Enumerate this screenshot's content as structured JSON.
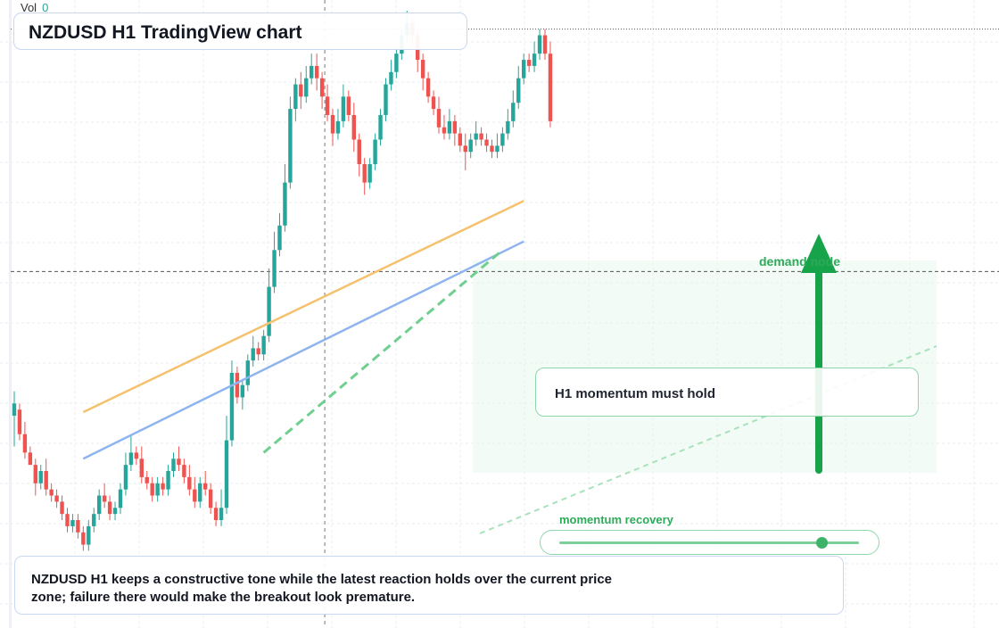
{
  "header": {
    "vol_label": "Vol",
    "vol_value": "0"
  },
  "title": "NZDUSD H1 TradingView chart",
  "annotations": {
    "momentum": "H1 momentum must hold",
    "demand": "demand node",
    "recovery_label": "momentum recovery",
    "recovery_level": 0.87,
    "note": "NZDUSD H1 keeps a constructive tone while the latest reaction holds over the current price zone; failure there would make the breakout look premature."
  },
  "colors": {
    "up": "#26a69a",
    "down": "#ef5350",
    "accent_green": "#2eaa5a",
    "trend_orange": "#f5c16c",
    "trend_blue": "#8eb4ef",
    "panel_border": "#c9d8f0"
  },
  "chart_data": {
    "type": "candlestick",
    "symbol": "NZDUSD",
    "timeframe": "H1",
    "title": "NZDUSD H1 TradingView chart",
    "ylim": [
      0,
      100
    ],
    "grid": true,
    "candles": [
      [
        34,
        36,
        38,
        29
      ],
      [
        35,
        31,
        36,
        30
      ],
      [
        31,
        28,
        33,
        27
      ],
      [
        28,
        26,
        29,
        26
      ],
      [
        26,
        23,
        27,
        21
      ],
      [
        23,
        25,
        26,
        22
      ],
      [
        25,
        22,
        27,
        21
      ],
      [
        22,
        21,
        23,
        20
      ],
      [
        21,
        20,
        22,
        19
      ],
      [
        20,
        18,
        21,
        17
      ],
      [
        18,
        16,
        19,
        15
      ],
      [
        16,
        17,
        18,
        15
      ],
      [
        17,
        15,
        18,
        14
      ],
      [
        15,
        13,
        16,
        12
      ],
      [
        13,
        16,
        17,
        12
      ],
      [
        16,
        18,
        19,
        15
      ],
      [
        18,
        21,
        22,
        17
      ],
      [
        21,
        20,
        23,
        19
      ],
      [
        20,
        18,
        21,
        17
      ],
      [
        18,
        19,
        20,
        17
      ],
      [
        19,
        22,
        23,
        18
      ],
      [
        22,
        26,
        28,
        21
      ],
      [
        26,
        28,
        31,
        25
      ],
      [
        28,
        27,
        29,
        26
      ],
      [
        27,
        24,
        29,
        23
      ],
      [
        24,
        23,
        25,
        22
      ],
      [
        23,
        21,
        24,
        20
      ],
      [
        21,
        23,
        24,
        20
      ],
      [
        23,
        22,
        24,
        21
      ],
      [
        22,
        25,
        26,
        21
      ],
      [
        25,
        27,
        28,
        24
      ],
      [
        27,
        26,
        29,
        25
      ],
      [
        26,
        24,
        27,
        23
      ],
      [
        24,
        22,
        26,
        21
      ],
      [
        22,
        20,
        24,
        19
      ],
      [
        20,
        23,
        24,
        19
      ],
      [
        23,
        22,
        25,
        21
      ],
      [
        22,
        19,
        23,
        18
      ],
      [
        19,
        17,
        20,
        16
      ],
      [
        17,
        19,
        22,
        16
      ],
      [
        19,
        30,
        34,
        18
      ],
      [
        30,
        41,
        43,
        29
      ],
      [
        41,
        37,
        42,
        36
      ],
      [
        37,
        39,
        40,
        35
      ],
      [
        39,
        43,
        44,
        38
      ],
      [
        43,
        45,
        47,
        42
      ],
      [
        45,
        44,
        46,
        43
      ],
      [
        44,
        47,
        48,
        43
      ],
      [
        47,
        55,
        58,
        46
      ],
      [
        55,
        61,
        64,
        54
      ],
      [
        61,
        65,
        67,
        60
      ],
      [
        65,
        72,
        75,
        64
      ],
      [
        72,
        84,
        86,
        71
      ],
      [
        84,
        88,
        89,
        82
      ],
      [
        88,
        86,
        90,
        84
      ],
      [
        86,
        89,
        91,
        85
      ],
      [
        89,
        91,
        93,
        88
      ],
      [
        91,
        89,
        93,
        87
      ],
      [
        89,
        86,
        90,
        84
      ],
      [
        86,
        83,
        88,
        82
      ],
      [
        83,
        80,
        84,
        78
      ],
      [
        80,
        82,
        84,
        79
      ],
      [
        82,
        86,
        88,
        81
      ],
      [
        86,
        83,
        87,
        82
      ],
      [
        83,
        79,
        85,
        77
      ],
      [
        79,
        75,
        80,
        73
      ],
      [
        75,
        72,
        76,
        70
      ],
      [
        72,
        75,
        76,
        71
      ],
      [
        75,
        79,
        80,
        74
      ],
      [
        79,
        83,
        84,
        78
      ],
      [
        83,
        88,
        89,
        82
      ],
      [
        88,
        90,
        92,
        87
      ],
      [
        90,
        93,
        94,
        89
      ],
      [
        93,
        96,
        97,
        92
      ],
      [
        96,
        98,
        100,
        95
      ],
      [
        98,
        96,
        99,
        94
      ],
      [
        96,
        92,
        97,
        90
      ],
      [
        92,
        89,
        93,
        87
      ],
      [
        89,
        86,
        90,
        85
      ],
      [
        86,
        84,
        87,
        83
      ],
      [
        84,
        81,
        86,
        80
      ],
      [
        81,
        80,
        83,
        79
      ],
      [
        80,
        82,
        84,
        79
      ],
      [
        82,
        80,
        83,
        78
      ],
      [
        80,
        78,
        81,
        77
      ],
      [
        78,
        77,
        80,
        74
      ],
      [
        77,
        79,
        80,
        76
      ],
      [
        79,
        80,
        82,
        78
      ],
      [
        80,
        79,
        81,
        78
      ],
      [
        79,
        78,
        80,
        77
      ],
      [
        78,
        77,
        79,
        76
      ],
      [
        77,
        78,
        80,
        76
      ],
      [
        78,
        80,
        81,
        77
      ],
      [
        80,
        82,
        84,
        79
      ],
      [
        82,
        85,
        87,
        81
      ],
      [
        85,
        89,
        91,
        84
      ],
      [
        89,
        92,
        93,
        88
      ],
      [
        92,
        91,
        93,
        90
      ],
      [
        91,
        93,
        95,
        90
      ],
      [
        93,
        96,
        97,
        92
      ],
      [
        96,
        93,
        97,
        92
      ],
      [
        93,
        82,
        95,
        81
      ]
    ],
    "vertical_marker_index": 58,
    "horizontal_levels": [
      {
        "value": 97,
        "style": "dotted"
      },
      {
        "value": 57.5,
        "style": "dashed"
      }
    ],
    "trendlines": [
      {
        "color": "orange",
        "from": [
          13,
          34.6
        ],
        "to": [
          96,
          69
        ]
      },
      {
        "color": "blue",
        "from": [
          13,
          27
        ],
        "to": [
          96,
          62.4
        ]
      },
      {
        "color": "green",
        "style": "dashed",
        "from": [
          47,
          28
        ],
        "to": [
          92,
          61
        ]
      }
    ],
    "volume": 0
  }
}
